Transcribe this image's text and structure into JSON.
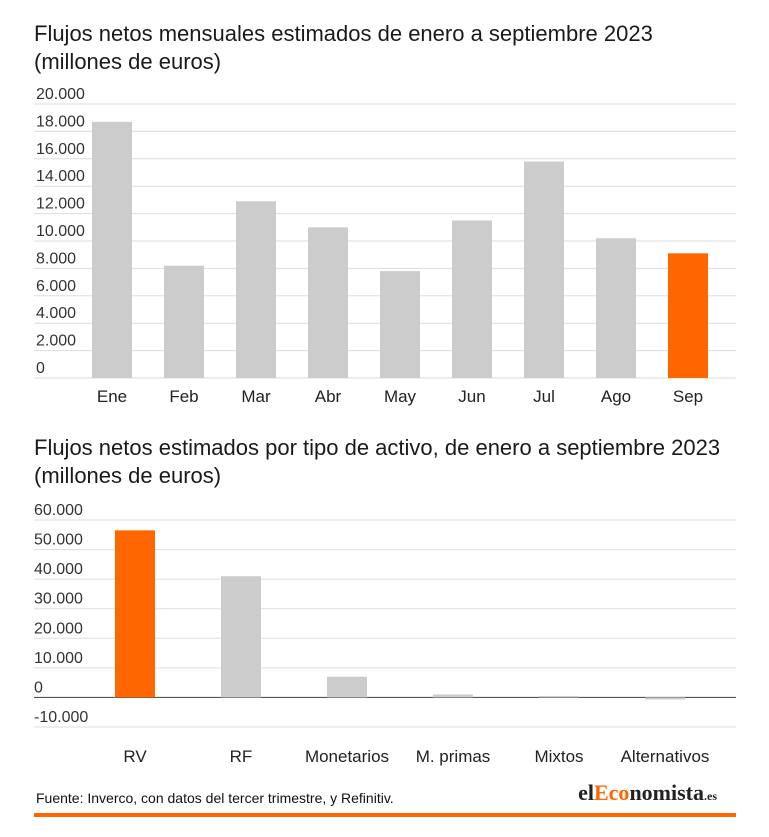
{
  "colors": {
    "highlight": "#ff6600",
    "bar": "#cccccc",
    "grid": "#dddddd",
    "zero_line": "#555555"
  },
  "chart_data": [
    {
      "type": "bar",
      "title": "Flujos netos mensuales estimados de enero a septiembre 2023 (millones de euros)",
      "categories": [
        "Ene",
        "Feb",
        "Mar",
        "Abr",
        "May",
        "Jun",
        "Jul",
        "Ago",
        "Sep"
      ],
      "values": [
        18700,
        8200,
        12900,
        11000,
        7800,
        11500,
        15800,
        10200,
        9100
      ],
      "highlight_index": 8,
      "yticks": [
        0,
        2000,
        4000,
        6000,
        8000,
        10000,
        12000,
        14000,
        16000,
        18000,
        20000
      ],
      "ytick_labels": [
        "0",
        "2.000",
        "4.000",
        "6.000",
        "8.000",
        "10.000",
        "12.000",
        "14.000",
        "16.000",
        "18.000",
        "20.000"
      ],
      "ylim": [
        0,
        20000
      ],
      "grid": true
    },
    {
      "type": "bar",
      "title": "Flujos netos estimados por tipo de activo, de enero a septiembre 2023 (millones de euros)",
      "categories": [
        "RV",
        "RF",
        "Monetarios",
        "M. primas",
        "Mixtos",
        "Alternativos"
      ],
      "values": [
        56500,
        41000,
        7000,
        1000,
        500,
        -700
      ],
      "highlight_index": 0,
      "yticks": [
        -10000,
        0,
        10000,
        20000,
        30000,
        40000,
        50000,
        60000
      ],
      "ytick_labels": [
        "-10.000",
        "0",
        "10.000",
        "20.000",
        "30.000",
        "40.000",
        "50.000",
        "60.000"
      ],
      "ylim": [
        -10000,
        60000
      ],
      "grid": true
    }
  ],
  "chart1_title": "Flujos netos mensuales estimados de enero a septiembre 2023 (millones de euros)",
  "chart2_title": "Flujos netos estimados por tipo de activo, de enero a septiembre 2023 (millones de euros)",
  "footer": {
    "source": "Fuente: Inverco, con datos del tercer trimestre, y Refinitiv.",
    "logo_el": "el",
    "logo_eco": "Eco",
    "logo_nomista": "nomista",
    "logo_es": ".es"
  }
}
